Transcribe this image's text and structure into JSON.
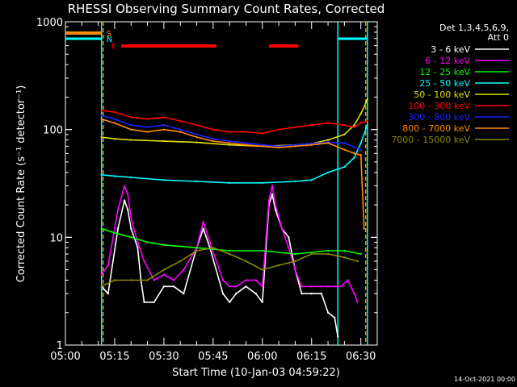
{
  "chart_data": {
    "type": "line",
    "title": "RHESSI Observing Summary Count Rates, Corrected",
    "xlabel": "Start Time (10-Jan-03 04:59:22)",
    "ylabel": "Corrected Count Rate (s⁻¹ detector⁻¹)",
    "y_scale": "log",
    "ylim": [
      1,
      1000
    ],
    "xlim_minutes": [
      0,
      95
    ],
    "x_tick_labels": [
      "05:00",
      "05:15",
      "05:30",
      "05:45",
      "06:00",
      "06:15",
      "06:30"
    ],
    "y_tick_labels": [
      "1",
      "10",
      "100",
      "1000"
    ],
    "legend": {
      "placement": "top-right",
      "header": [
        "Det 1,3,4,5,6,9,",
        "Att 0"
      ],
      "entries": [
        {
          "label": "3 - 6 keV",
          "color": "#ffffff"
        },
        {
          "label": "6 - 12 keV",
          "color": "#ff00ff"
        },
        {
          "label": "12 - 25 keV",
          "color": "#00ff00"
        },
        {
          "label": "25 - 50 keV",
          "color": "#00ffff"
        },
        {
          "label": "50 - 100 keV",
          "color": "#e0e000"
        },
        {
          "label": "100 - 300 keV",
          "color": "#ff0000"
        },
        {
          "label": "300 - 800 keV",
          "color": "#2020ff"
        },
        {
          "label": "800 - 7000 keV",
          "color": "#ff8c00"
        },
        {
          "label": "7000 - 15000 keV",
          "color": "#8b8b00"
        }
      ]
    },
    "flags": [
      {
        "label": "S",
        "color": "#ff8c00",
        "segments": [
          [
            0,
            11
          ]
        ]
      },
      {
        "label": "N",
        "color": "#00ffff",
        "segments": [
          [
            0,
            11
          ],
          [
            83,
            92
          ]
        ]
      },
      {
        "label": "F",
        "color": "#ff0000",
        "segments": [
          [
            17,
            46
          ],
          [
            62,
            71
          ]
        ]
      }
    ],
    "vertical_markers": [
      {
        "x": 11,
        "color": "#ff8c00",
        "style": "dashed"
      },
      {
        "x": 11,
        "color": "#00ffff",
        "style": "solid"
      },
      {
        "x": 83,
        "color": "#00ffff",
        "style": "solid"
      },
      {
        "x": 91,
        "color": "#ff8c00",
        "style": "dashed"
      },
      {
        "x": 92,
        "color": "#00ffff",
        "style": "solid"
      }
    ],
    "series": [
      {
        "name": "3 - 6 keV",
        "color": "#ffffff",
        "x": [
          11,
          13,
          16,
          18,
          19,
          20,
          22,
          23,
          24,
          27,
          30,
          33,
          36,
          40,
          42,
          44,
          48,
          50,
          52,
          55,
          58,
          60,
          62,
          63,
          64,
          66,
          68,
          70,
          72,
          75,
          78,
          80,
          82,
          83
        ],
        "y": [
          3.5,
          3.0,
          12,
          22,
          18,
          12,
          8,
          4,
          2.5,
          2.5,
          3.5,
          3.5,
          3.0,
          8,
          12,
          8,
          3,
          2.5,
          3,
          3.5,
          3,
          2.5,
          20,
          25,
          18,
          12,
          10,
          5,
          3,
          3,
          3,
          2,
          1.8,
          1.2
        ]
      },
      {
        "name": "6 - 12 keV",
        "color": "#ff00ff",
        "x": [
          11,
          13,
          16,
          18,
          19,
          20,
          22,
          24,
          27,
          30,
          33,
          36,
          40,
          42,
          44,
          48,
          50,
          52,
          55,
          58,
          60,
          62,
          63,
          64,
          66,
          68,
          70,
          72,
          75,
          78,
          80,
          82,
          84,
          86,
          88,
          89
        ],
        "y": [
          4.5,
          5.5,
          18,
          30,
          25,
          15,
          9,
          6,
          4,
          4.5,
          4,
          5,
          8,
          14,
          9,
          4,
          3.5,
          3.5,
          4,
          4,
          3.5,
          22,
          30,
          20,
          12,
          8,
          5,
          3.5,
          3.5,
          3.5,
          3.5,
          3.5,
          3.5,
          4,
          3,
          2.5
        ]
      },
      {
        "name": "12 - 25 keV",
        "color": "#00ff00",
        "x": [
          11,
          15,
          20,
          25,
          30,
          40,
          50,
          60,
          70,
          80,
          85,
          90
        ],
        "y": [
          12,
          11,
          10,
          9,
          8.5,
          8,
          7.5,
          7.5,
          7,
          7.5,
          7.5,
          7
        ]
      },
      {
        "name": "25 - 50 keV",
        "color": "#00ffff",
        "x": [
          11,
          15,
          20,
          30,
          40,
          50,
          60,
          70,
          75,
          80,
          85,
          88,
          90,
          92
        ],
        "y": [
          38,
          37,
          36,
          34,
          33,
          32,
          32,
          33,
          34,
          40,
          45,
          55,
          75,
          110
        ]
      },
      {
        "name": "50 - 100 keV",
        "color": "#e0e000",
        "x": [
          11,
          15,
          20,
          30,
          40,
          50,
          60,
          70,
          75,
          80,
          85,
          88,
          90,
          92
        ],
        "y": [
          85,
          82,
          80,
          78,
          76,
          72,
          70,
          72,
          74,
          80,
          90,
          110,
          140,
          190
        ]
      },
      {
        "name": "100 - 300 keV",
        "color": "#ff0000",
        "x": [
          11,
          15,
          20,
          25,
          30,
          35,
          40,
          45,
          50,
          55,
          60,
          65,
          70,
          75,
          80,
          85,
          88,
          90,
          92
        ],
        "y": [
          150,
          145,
          130,
          125,
          130,
          120,
          110,
          100,
          95,
          95,
          92,
          100,
          105,
          110,
          115,
          110,
          105,
          115,
          120
        ]
      },
      {
        "name": "300 - 800 keV",
        "color": "#2020ff",
        "x": [
          11,
          15,
          20,
          25,
          30,
          35,
          40,
          45,
          50,
          55,
          60,
          65,
          70,
          75,
          80,
          85,
          90
        ],
        "y": [
          135,
          125,
          110,
          105,
          110,
          100,
          90,
          82,
          78,
          75,
          72,
          70,
          72,
          74,
          76,
          75,
          65
        ]
      },
      {
        "name": "800 - 7000 keV",
        "color": "#ff8c00",
        "x": [
          11,
          15,
          20,
          25,
          30,
          35,
          40,
          45,
          50,
          55,
          60,
          65,
          70,
          75,
          80,
          85,
          88,
          90,
          91
        ],
        "y": [
          125,
          115,
          100,
          95,
          100,
          95,
          85,
          78,
          75,
          72,
          70,
          68,
          70,
          72,
          75,
          65,
          60,
          58,
          12
        ]
      },
      {
        "name": "7000 - 15000 keV",
        "color": "#8b8b00",
        "x": [
          11,
          15,
          20,
          25,
          30,
          35,
          40,
          45,
          50,
          55,
          60,
          65,
          70,
          75,
          80,
          85,
          89
        ],
        "y": [
          3.5,
          4,
          4,
          4,
          5,
          6,
          7.5,
          8,
          7,
          6,
          5,
          5.5,
          6,
          7,
          7,
          6.5,
          6
        ]
      }
    ]
  },
  "footer": {
    "date": "14-Oct-2021 00:00"
  }
}
